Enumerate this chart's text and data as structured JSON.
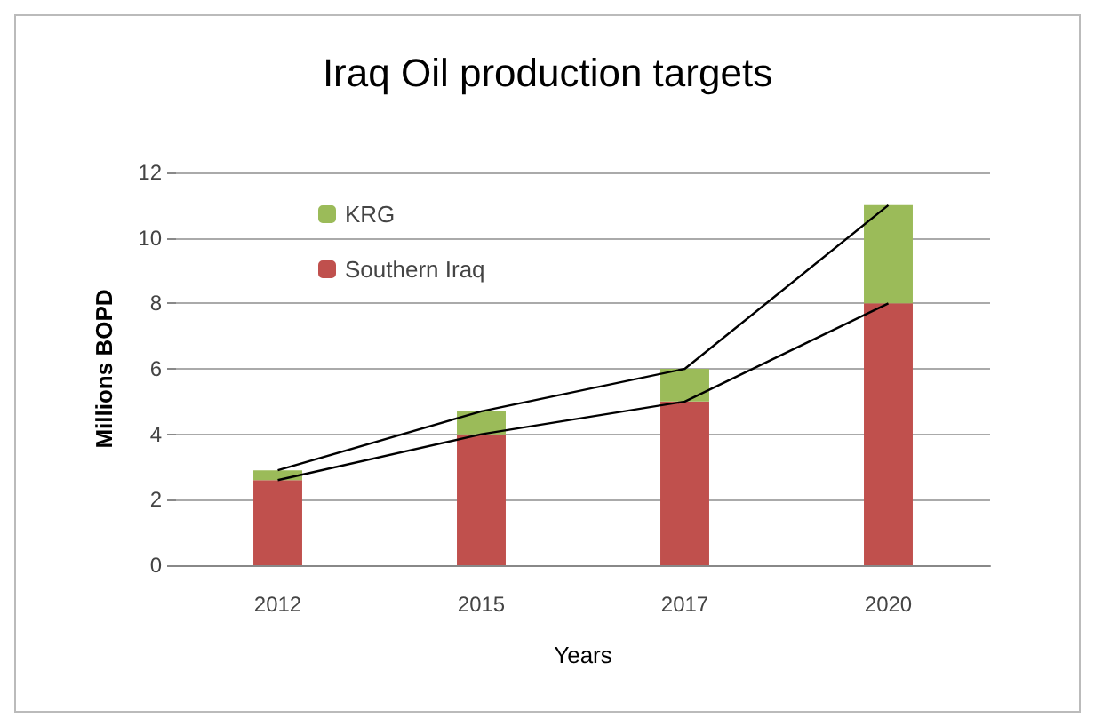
{
  "chart_data": {
    "type": "bar",
    "title": "Iraq Oil production targets",
    "xlabel": "Years",
    "ylabel": "Millions BOPD",
    "categories": [
      "2012",
      "2015",
      "2017",
      "2020"
    ],
    "stacked": true,
    "series": [
      {
        "name": "Southern Iraq",
        "color": "#c0504d",
        "values": [
          2.6,
          4,
          5,
          8
        ]
      },
      {
        "name": "KRG",
        "color": "#9bbb59",
        "values": [
          0.3,
          0.7,
          1,
          3
        ]
      },
      {
        "type": "line",
        "color": "#000000",
        "values": [
          2.9,
          4.7,
          6,
          11
        ]
      },
      {
        "type": "line",
        "color": "#000000",
        "values": [
          2.6,
          4,
          5,
          8
        ]
      }
    ],
    "ylim": [
      0,
      12
    ],
    "yticks": [
      0,
      2,
      4,
      6,
      8,
      10,
      12
    ],
    "grid": "y",
    "legend": "top left"
  }
}
